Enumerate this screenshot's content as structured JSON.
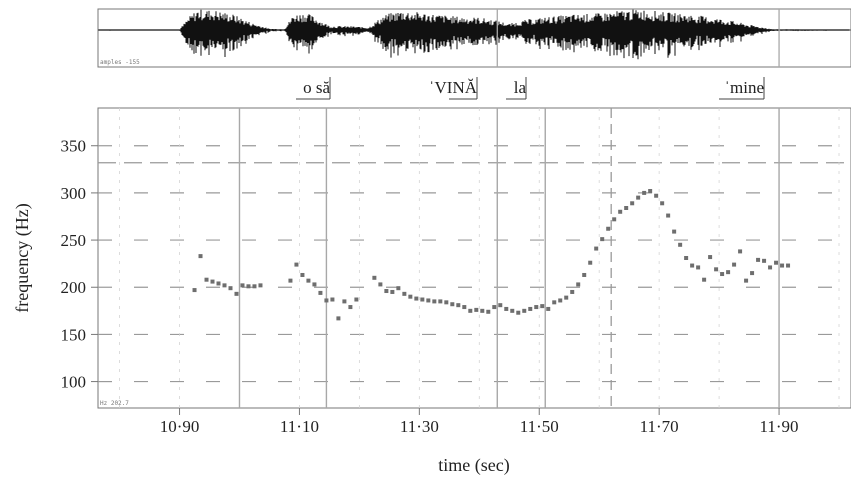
{
  "colors": {
    "frame": "#777777",
    "dash": "#9a9a9a",
    "vline": "#a8a8a8",
    "wave": "#111111",
    "dot": "#6e6e6e",
    "text": "#222222"
  },
  "waveform": {
    "corner_label": "amples  -155",
    "x_range": [
      10.764,
      12.02
    ],
    "envelope": [
      [
        10.764,
        0.02
      ],
      [
        10.9,
        0.02
      ],
      [
        10.915,
        0.6
      ],
      [
        10.93,
        1.0
      ],
      [
        10.96,
        0.95
      ],
      [
        10.99,
        0.75
      ],
      [
        11.02,
        0.35
      ],
      [
        11.05,
        0.06
      ],
      [
        11.075,
        0.05
      ],
      [
        11.09,
        0.75
      ],
      [
        11.11,
        0.85
      ],
      [
        11.13,
        0.55
      ],
      [
        11.15,
        0.2
      ],
      [
        11.19,
        0.18
      ],
      [
        11.215,
        0.12
      ],
      [
        11.24,
        0.7
      ],
      [
        11.27,
        0.95
      ],
      [
        11.3,
        0.85
      ],
      [
        11.33,
        0.75
      ],
      [
        11.36,
        0.65
      ],
      [
        11.4,
        0.6
      ],
      [
        11.43,
        0.45
      ],
      [
        11.45,
        0.3
      ],
      [
        11.48,
        0.5
      ],
      [
        11.52,
        0.65
      ],
      [
        11.56,
        0.75
      ],
      [
        11.6,
        0.8
      ],
      [
        11.64,
        0.95
      ],
      [
        11.67,
        1.0
      ],
      [
        11.71,
        0.85
      ],
      [
        11.75,
        0.75
      ],
      [
        11.79,
        0.6
      ],
      [
        11.82,
        0.45
      ],
      [
        11.85,
        0.25
      ],
      [
        11.89,
        0.04
      ],
      [
        12.02,
        0.02
      ]
    ]
  },
  "segments": [
    {
      "text": "o să",
      "end": 11.145
    },
    {
      "text": "ˈVINĂ",
      "end": 11.43
    },
    {
      "text": "la",
      "end": 11.51
    },
    {
      "text": "ˈmine",
      "end": 11.9
    }
  ],
  "chart_data": {
    "type": "scatter",
    "xlabel": "time (sec)",
    "ylabel": "frequency (Hz)",
    "xlim": [
      10.764,
      12.02
    ],
    "ylim": [
      72,
      390
    ],
    "xticks": [
      {
        "value": 10.9,
        "label": "10·90"
      },
      {
        "value": 11.1,
        "label": "11·10"
      },
      {
        "value": 11.3,
        "label": "11·30"
      },
      {
        "value": 11.5,
        "label": "11·50"
      },
      {
        "value": 11.7,
        "label": "11·70"
      },
      {
        "value": 11.9,
        "label": "11·90"
      }
    ],
    "yticks": [
      100,
      150,
      200,
      250,
      300,
      350
    ],
    "grid": "dashed",
    "reference_line": 332,
    "cursor_line": 11.62,
    "boundaries": [
      11.0,
      11.145,
      11.43,
      11.51,
      11.9
    ],
    "corner_label": "Hz 202.7",
    "points": [
      [
        10.925,
        197
      ],
      [
        10.935,
        233
      ],
      [
        10.945,
        208
      ],
      [
        10.955,
        206
      ],
      [
        10.965,
        204
      ],
      [
        10.975,
        202
      ],
      [
        10.985,
        199
      ],
      [
        10.995,
        193
      ],
      [
        11.005,
        202
      ],
      [
        11.015,
        201
      ],
      [
        11.025,
        201
      ],
      [
        11.035,
        202
      ],
      [
        11.085,
        207
      ],
      [
        11.095,
        224
      ],
      [
        11.105,
        213
      ],
      [
        11.115,
        207
      ],
      [
        11.125,
        203
      ],
      [
        11.135,
        194
      ],
      [
        11.145,
        186
      ],
      [
        11.155,
        187
      ],
      [
        11.165,
        167
      ],
      [
        11.175,
        185
      ],
      [
        11.185,
        179
      ],
      [
        11.195,
        187
      ],
      [
        11.225,
        210
      ],
      [
        11.235,
        203
      ],
      [
        11.245,
        196
      ],
      [
        11.255,
        195
      ],
      [
        11.265,
        199
      ],
      [
        11.275,
        193
      ],
      [
        11.285,
        190
      ],
      [
        11.295,
        188
      ],
      [
        11.305,
        187
      ],
      [
        11.315,
        186
      ],
      [
        11.325,
        185
      ],
      [
        11.335,
        185
      ],
      [
        11.345,
        184
      ],
      [
        11.355,
        182
      ],
      [
        11.365,
        181
      ],
      [
        11.375,
        179
      ],
      [
        11.385,
        175
      ],
      [
        11.395,
        176
      ],
      [
        11.405,
        175
      ],
      [
        11.415,
        174
      ],
      [
        11.425,
        179
      ],
      [
        11.435,
        181
      ],
      [
        11.445,
        177
      ],
      [
        11.455,
        175
      ],
      [
        11.465,
        173
      ],
      [
        11.475,
        175
      ],
      [
        11.485,
        177
      ],
      [
        11.495,
        179
      ],
      [
        11.505,
        180
      ],
      [
        11.515,
        177
      ],
      [
        11.525,
        184
      ],
      [
        11.535,
        186
      ],
      [
        11.545,
        189
      ],
      [
        11.555,
        195
      ],
      [
        11.565,
        203
      ],
      [
        11.575,
        213
      ],
      [
        11.585,
        226
      ],
      [
        11.595,
        241
      ],
      [
        11.605,
        251
      ],
      [
        11.615,
        262
      ],
      [
        11.625,
        272
      ],
      [
        11.635,
        280
      ],
      [
        11.645,
        284
      ],
      [
        11.655,
        289
      ],
      [
        11.665,
        295
      ],
      [
        11.675,
        300
      ],
      [
        11.685,
        302
      ],
      [
        11.695,
        297
      ],
      [
        11.705,
        289
      ],
      [
        11.715,
        276
      ],
      [
        11.725,
        259
      ],
      [
        11.735,
        245
      ],
      [
        11.745,
        231
      ],
      [
        11.755,
        223
      ],
      [
        11.765,
        221
      ],
      [
        11.775,
        208
      ],
      [
        11.785,
        232
      ],
      [
        11.795,
        219
      ],
      [
        11.805,
        214
      ],
      [
        11.815,
        216
      ],
      [
        11.825,
        224
      ],
      [
        11.835,
        238
      ],
      [
        11.845,
        207
      ],
      [
        11.855,
        215
      ],
      [
        11.865,
        229
      ],
      [
        11.875,
        228
      ],
      [
        11.885,
        221
      ],
      [
        11.895,
        226
      ],
      [
        11.905,
        223
      ],
      [
        11.915,
        223
      ]
    ]
  }
}
